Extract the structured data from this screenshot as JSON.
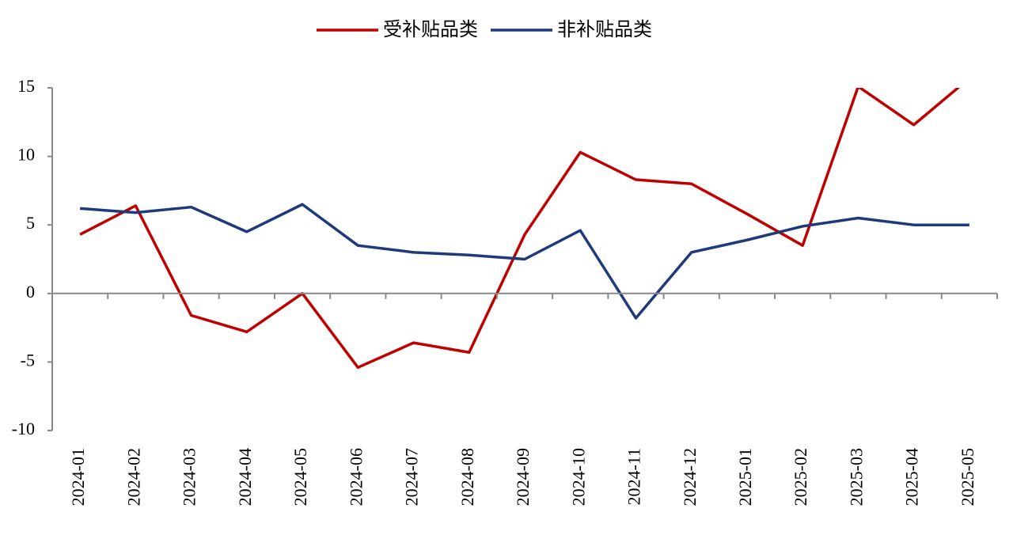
{
  "chart_data": {
    "type": "line",
    "categories": [
      "2024-01",
      "2024-02",
      "2024-03",
      "2024-04",
      "2024-05",
      "2024-06",
      "2024-07",
      "2024-08",
      "2024-09",
      "2024-10",
      "2024-11",
      "2024-12",
      "2025-01",
      "2025-02",
      "2025-03",
      "2025-04",
      "2025-05"
    ],
    "series": [
      {
        "name": "受补贴品类",
        "color": "#c00000",
        "values": [
          4.3,
          6.4,
          -1.6,
          -2.8,
          0,
          -5.4,
          -3.6,
          -4.3,
          4.3,
          10.3,
          8.3,
          8.0,
          5.8,
          3.5,
          15.1,
          12.3,
          15.7
        ]
      },
      {
        "name": "非补贴品类",
        "color": "#1f3a7a",
        "values": [
          6.2,
          5.9,
          6.3,
          4.5,
          6.5,
          3.5,
          3.0,
          2.8,
          2.5,
          4.6,
          -1.8,
          3.0,
          3.9,
          4.9,
          5.5,
          5.0,
          5.0
        ]
      }
    ],
    "ylim": [
      -10,
      15
    ],
    "yticks": [
      15,
      10,
      5,
      0,
      -5,
      -10
    ],
    "legend": "top"
  }
}
